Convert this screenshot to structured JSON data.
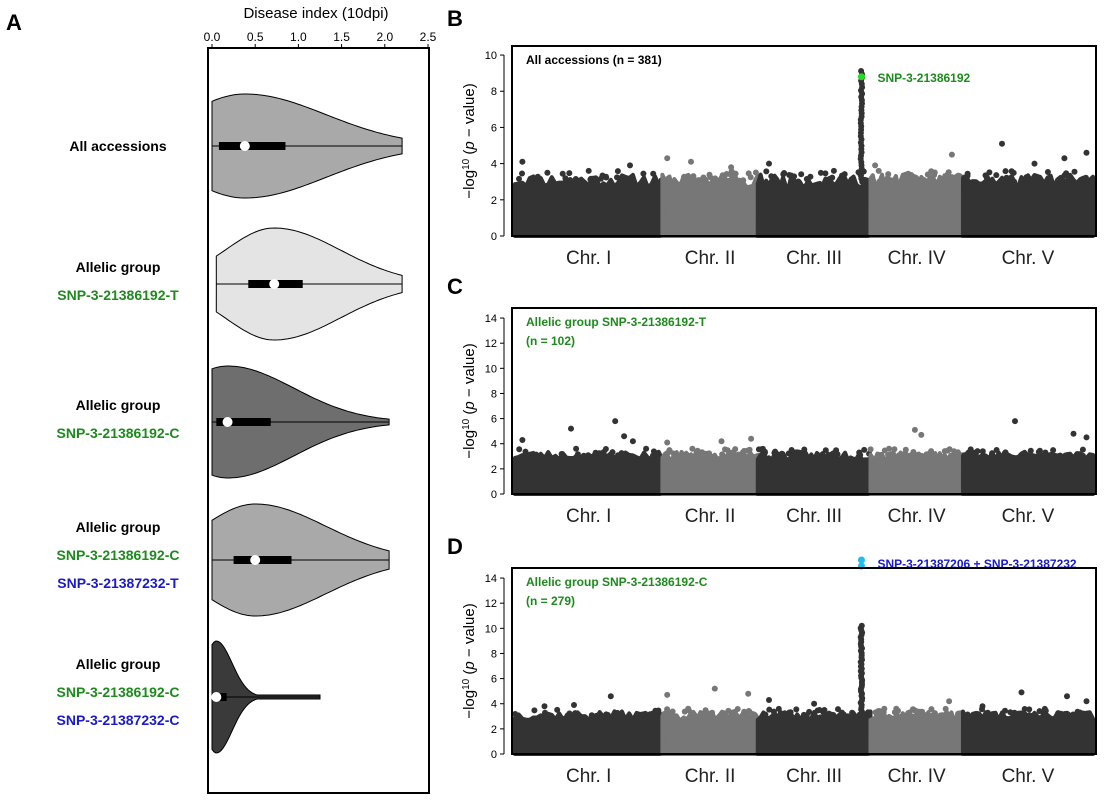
{
  "panels": {
    "a": "A",
    "b": "B",
    "c": "C",
    "d": "D"
  },
  "colors": {
    "green": "#1e8a1e",
    "blue": "#1a1acc",
    "highlight_green": "#22dd22",
    "highlight_cyan": "#22bbee",
    "chr_dark": "#333333",
    "chr_light": "#777777"
  },
  "chart_data": [
    {
      "type": "violin",
      "panel": "A",
      "xlabel": "Disease index (10dpi)",
      "xlim": [
        0,
        2.5
      ],
      "xticks": [
        "0.0",
        "0.5",
        "1.0",
        "1.5",
        "2.0",
        "2.5"
      ],
      "groups": [
        {
          "lines": [
            {
              "text": "All accessions",
              "color": "black"
            }
          ],
          "fill": "#a9a9a9",
          "median": 0.38,
          "q1": 0.08,
          "q3": 0.85,
          "min": 0.0,
          "max": 2.2
        },
        {
          "lines": [
            {
              "text": "Allelic group",
              "color": "black"
            },
            {
              "text": "SNP-3-21386192-T",
              "color": "green"
            }
          ],
          "fill": "#e4e4e4",
          "median": 0.72,
          "q1": 0.42,
          "q3": 1.05,
          "min": 0.05,
          "max": 2.2
        },
        {
          "lines": [
            {
              "text": "Allelic group",
              "color": "black"
            },
            {
              "text": "SNP-3-21386192-C",
              "color": "green"
            }
          ],
          "fill": "#6e6e6e",
          "median": 0.18,
          "q1": 0.05,
          "q3": 0.68,
          "min": 0.0,
          "max": 2.05
        },
        {
          "lines": [
            {
              "text": "Allelic group",
              "color": "black"
            },
            {
              "text": "SNP-3-21386192-C",
              "color": "green"
            },
            {
              "text": "SNP-3-21387232-T",
              "color": "blue"
            }
          ],
          "fill": "#a9a9a9",
          "median": 0.5,
          "q1": 0.25,
          "q3": 0.92,
          "min": 0.0,
          "max": 2.05
        },
        {
          "lines": [
            {
              "text": "Allelic group",
              "color": "black"
            },
            {
              "text": "SNP-3-21386192-C",
              "color": "green"
            },
            {
              "text": "SNP-3-21387232-C",
              "color": "blue"
            }
          ],
          "fill": "#3a3a3a",
          "median": 0.05,
          "q1": 0.02,
          "q3": 0.17,
          "min": 0.0,
          "max": 1.25
        }
      ]
    },
    {
      "type": "scatter",
      "panel": "B",
      "ylabel_prefix": "−log",
      "ylabel_sup": "10",
      "ylabel_p": "p",
      "ylabel_rest": "− value",
      "ylim": [
        0,
        10
      ],
      "yticks": [
        "0",
        "2",
        "4",
        "6",
        "8",
        "10"
      ],
      "chromosomes": [
        "Chr. I",
        "Chr. II",
        "Chr. III",
        "Chr. IV",
        "Chr. V"
      ],
      "annotation": {
        "text": "All accessions (n = 381)",
        "color": "black"
      },
      "annotation2": "",
      "top_hit": {
        "label": "SNP-3-21386192",
        "chr": 3,
        "pos": 0.92,
        "y": 8.8,
        "label_color": "green",
        "dot_color": "highlight_green"
      },
      "peak": {
        "chr": 3,
        "pos": 0.92,
        "max": 9.2
      },
      "outliers": [
        [
          1,
          0.05,
          4.1
        ],
        [
          1,
          0.22,
          3.5
        ],
        [
          1,
          0.5,
          3.6
        ],
        [
          1,
          0.78,
          3.9
        ],
        [
          2,
          0.05,
          4.3
        ],
        [
          2,
          0.3,
          4.1
        ],
        [
          2,
          0.72,
          3.8
        ],
        [
          3,
          0.1,
          4.0
        ],
        [
          4,
          0.05,
          3.9
        ],
        [
          4,
          0.62,
          3.4
        ],
        [
          4,
          0.88,
          4.5
        ],
        [
          5,
          0.3,
          5.1
        ],
        [
          5,
          0.55,
          4.0
        ],
        [
          5,
          0.78,
          4.3
        ],
        [
          5,
          0.95,
          4.6
        ]
      ]
    },
    {
      "type": "scatter",
      "panel": "C",
      "ylabel_prefix": "−log",
      "ylabel_sup": "10",
      "ylabel_p": "p",
      "ylabel_rest": "− value",
      "ylim": [
        0,
        14
      ],
      "yticks": [
        "0",
        "2",
        "4",
        "6",
        "8",
        "10",
        "12",
        "14"
      ],
      "chromosomes": [
        "Chr. I",
        "Chr. II",
        "Chr. III",
        "Chr. IV",
        "Chr. V"
      ],
      "annotation": {
        "text": "Allelic group SNP-3-21386192-T",
        "color": "green"
      },
      "annotation2": "(n = 102)",
      "outliers": [
        [
          1,
          0.05,
          4.3
        ],
        [
          1,
          0.38,
          5.2
        ],
        [
          1,
          0.68,
          5.8
        ],
        [
          1,
          0.74,
          4.6
        ],
        [
          1,
          0.8,
          4.2
        ],
        [
          2,
          0.05,
          4.1
        ],
        [
          2,
          0.62,
          4.2
        ],
        [
          2,
          0.93,
          4.4
        ],
        [
          3,
          0.3,
          3.5
        ],
        [
          3,
          0.9,
          3.3
        ],
        [
          4,
          0.2,
          3.6
        ],
        [
          4,
          0.48,
          5.1
        ],
        [
          4,
          0.55,
          4.7
        ],
        [
          5,
          0.4,
          5.8
        ],
        [
          5,
          0.85,
          4.8
        ],
        [
          5,
          0.95,
          4.5
        ]
      ]
    },
    {
      "type": "scatter",
      "panel": "D",
      "ylabel_prefix": "−log",
      "ylabel_sup": "10",
      "ylabel_p": "p",
      "ylabel_rest": "− value",
      "ylim": [
        0,
        14
      ],
      "yticks": [
        "0",
        "2",
        "4",
        "6",
        "8",
        "10",
        "12",
        "14"
      ],
      "chromosomes": [
        "Chr. I",
        "Chr. II",
        "Chr. III",
        "Chr. IV",
        "Chr. V"
      ],
      "annotation": {
        "text": "Allelic group SNP-3-21386192-C",
        "color": "green"
      },
      "annotation2": "(n = 279)",
      "top_hit": {
        "label": "SNP-3-21387206 + SNP-3-21387232",
        "chr": 3,
        "pos": 0.92,
        "y": 15.2,
        "label_color": "blue",
        "dot_color": "highlight_cyan"
      },
      "peak": {
        "chr": 3,
        "pos": 0.92,
        "max": 10.2
      },
      "outliers": [
        [
          1,
          0.2,
          3.8
        ],
        [
          1,
          0.4,
          3.9
        ],
        [
          1,
          0.65,
          4.6
        ],
        [
          2,
          0.05,
          4.7
        ],
        [
          2,
          0.55,
          5.2
        ],
        [
          2,
          0.9,
          4.8
        ],
        [
          3,
          0.1,
          4.3
        ],
        [
          3,
          0.5,
          4.0
        ],
        [
          4,
          0.15,
          3.6
        ],
        [
          4,
          0.5,
          3.4
        ],
        [
          4,
          0.85,
          4.2
        ],
        [
          5,
          0.15,
          3.8
        ],
        [
          5,
          0.45,
          4.9
        ],
        [
          5,
          0.8,
          4.6
        ],
        [
          5,
          0.95,
          4.2
        ]
      ]
    }
  ]
}
